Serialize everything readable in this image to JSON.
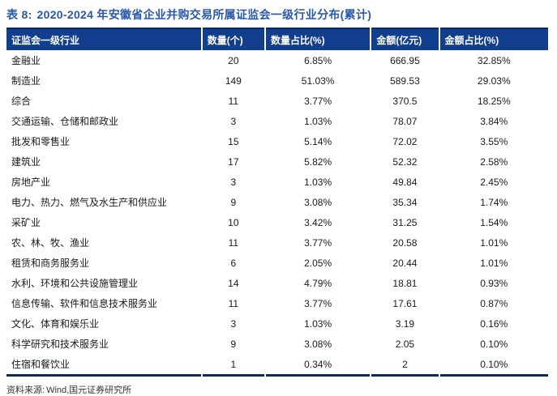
{
  "page": {
    "title_prefix": "表 8:",
    "title_text": "2020-2024 年安徽省企业并购交易所属证监会一级行业分布(累计)"
  },
  "table": {
    "columns": [
      "证监会一级行业",
      "数量(个)",
      "数量占比(%)",
      "金额(亿元)",
      "金额占比(%)"
    ],
    "rows": [
      [
        "金融业",
        "20",
        "6.85%",
        "666.95",
        "32.85%"
      ],
      [
        "制造业",
        "149",
        "51.03%",
        "589.53",
        "29.03%"
      ],
      [
        "综合",
        "11",
        "3.77%",
        "370.5",
        "18.25%"
      ],
      [
        "交通运输、仓储和邮政业",
        "3",
        "1.03%",
        "78.07",
        "3.84%"
      ],
      [
        "批发和零售业",
        "15",
        "5.14%",
        "72.02",
        "3.55%"
      ],
      [
        "建筑业",
        "17",
        "5.82%",
        "52.32",
        "2.58%"
      ],
      [
        "房地产业",
        "3",
        "1.03%",
        "49.84",
        "2.45%"
      ],
      [
        "电力、热力、燃气及水生产和供应业",
        "9",
        "3.08%",
        "35.34",
        "1.74%"
      ],
      [
        "采矿业",
        "10",
        "3.42%",
        "31.25",
        "1.54%"
      ],
      [
        "农、林、牧、渔业",
        "11",
        "3.77%",
        "20.58",
        "1.01%"
      ],
      [
        "租赁和商务服务业",
        "6",
        "2.05%",
        "20.44",
        "1.01%"
      ],
      [
        "水利、环境和公共设施管理业",
        "14",
        "4.79%",
        "18.81",
        "0.93%"
      ],
      [
        "信息传输、软件和信息技术服务业",
        "11",
        "3.77%",
        "17.61",
        "0.87%"
      ],
      [
        "文化、体育和娱乐业",
        "3",
        "1.03%",
        "3.19",
        "0.16%"
      ],
      [
        "科学研究和技术服务业",
        "9",
        "3.08%",
        "2.05",
        "0.10%"
      ],
      [
        "住宿和餐饮业",
        "1",
        "0.34%",
        "2",
        "0.10%"
      ]
    ],
    "cell_names": [
      "cell-industry",
      "cell-count",
      "cell-count-pct",
      "cell-amount",
      "cell-amount-pct"
    ]
  },
  "footer": {
    "source_label": "资料来源:",
    "source_text": "Wind,国元证券研究所"
  },
  "colors": {
    "title_blue": "#2a58a8",
    "header_bg": "#123e8e",
    "header_text": "#ffffff",
    "rule_dark": "#0c2a5e",
    "body_text": "#1a1a1a",
    "source_text": "#333333"
  }
}
